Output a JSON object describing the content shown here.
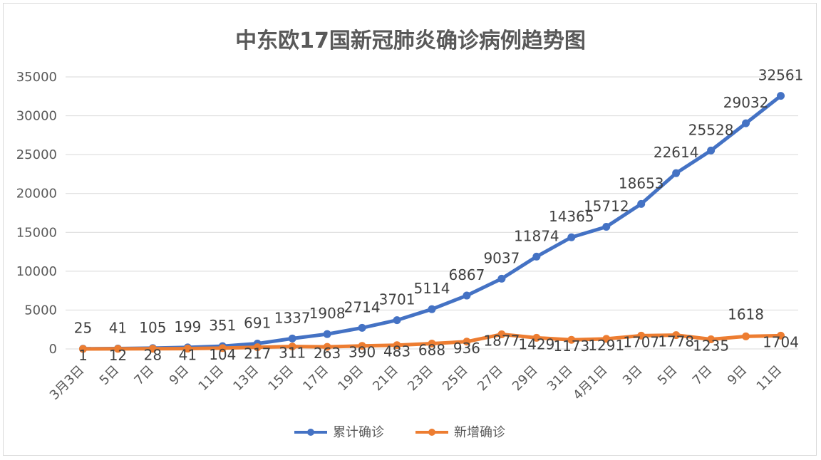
{
  "chart_data": {
    "type": "line",
    "title": "中东欧17国新冠肺炎确诊病例趋势图",
    "xlabel": "",
    "ylabel": "",
    "ylim": [
      0,
      35000
    ],
    "yticks": [
      0,
      5000,
      10000,
      15000,
      20000,
      25000,
      30000,
      35000
    ],
    "grid": true,
    "legend_position": "bottom",
    "categories": [
      "3月3日",
      "5日",
      "7日",
      "9日",
      "11日",
      "13日",
      "15日",
      "17日",
      "19日",
      "21日",
      "23日",
      "25日",
      "27日",
      "29日",
      "31日",
      "4月1日",
      "3日",
      "5日",
      "7日",
      "9日",
      "11日"
    ],
    "series": [
      {
        "name": "累计确诊",
        "color": "#4472c4",
        "values": [
          25,
          41,
          105,
          199,
          351,
          691,
          1337,
          1908,
          2714,
          3701,
          5114,
          6867,
          9037,
          11874,
          14365,
          15712,
          18653,
          22614,
          25528,
          29032,
          32561
        ]
      },
      {
        "name": "新增确诊",
        "color": "#ed7d31",
        "values": [
          1,
          12,
          28,
          41,
          104,
          217,
          311,
          263,
          390,
          483,
          688,
          936,
          1877,
          1429,
          1173,
          1291,
          1707,
          1778,
          1235,
          1618,
          1704
        ]
      }
    ]
  }
}
